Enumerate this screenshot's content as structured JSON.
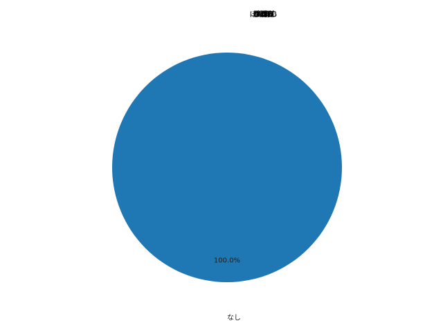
{
  "chart_data": {
    "type": "pie",
    "title_lines": [
      "銀杏",
      "うずら",
      "ささみ",
      "ねぎま",
      "豚バラ",
      "ぼんじり",
      "砂肝",
      "つくね",
      "ハツ",
      "レバー",
      "皮",
      "手羽先",
      "せせり",
      "ぼんぼち",
      "しっぽ",
      "+角"
    ],
    "slices": [
      {
        "label": "なし",
        "value": 100,
        "percent_label": "100.0%",
        "color": "#1f77b4"
      }
    ]
  }
}
